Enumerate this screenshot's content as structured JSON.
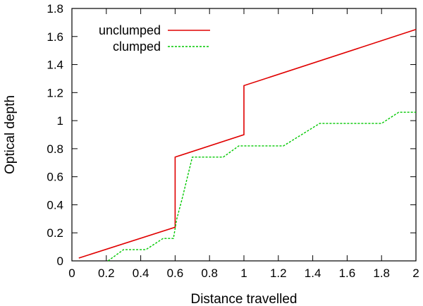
{
  "chart_data": {
    "type": "line",
    "title": "",
    "xlabel": "Distance travelled",
    "ylabel": "Optical depth",
    "xlim": [
      0,
      2
    ],
    "ylim": [
      0,
      1.8
    ],
    "x_ticks": [
      "0",
      "0.2",
      "0.4",
      "0.6",
      "0.8",
      "1",
      "1.2",
      "1.4",
      "1.6",
      "1.8",
      "2"
    ],
    "y_ticks": [
      "0",
      "0.2",
      "0.4",
      "0.6",
      "0.8",
      "1",
      "1.2",
      "1.4",
      "1.6",
      "1.8"
    ],
    "grid": false,
    "legend_position": "top-left",
    "series": [
      {
        "name": "unclumped",
        "color": "#e00000",
        "dash": "solid",
        "points": [
          [
            0.04,
            0.02
          ],
          [
            0.6,
            0.24
          ],
          [
            0.6,
            0.74
          ],
          [
            1.0,
            0.9
          ],
          [
            1.0,
            1.25
          ],
          [
            2.0,
            1.65
          ]
        ]
      },
      {
        "name": "clumped",
        "color": "#00c800",
        "dash": "dashed",
        "points": [
          [
            0.21,
            0.0
          ],
          [
            0.3,
            0.08
          ],
          [
            0.43,
            0.08
          ],
          [
            0.53,
            0.16
          ],
          [
            0.59,
            0.16
          ],
          [
            0.61,
            0.3
          ],
          [
            0.64,
            0.44
          ],
          [
            0.7,
            0.74
          ],
          [
            0.88,
            0.74
          ],
          [
            0.97,
            0.82
          ],
          [
            1.23,
            0.82
          ],
          [
            1.44,
            0.98
          ],
          [
            1.8,
            0.98
          ],
          [
            1.9,
            1.06
          ],
          [
            2.0,
            1.06
          ]
        ]
      }
    ]
  }
}
